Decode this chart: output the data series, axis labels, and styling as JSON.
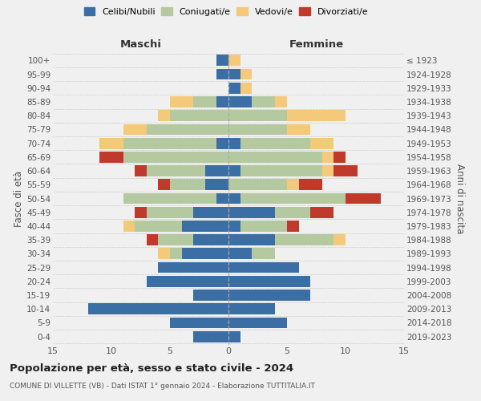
{
  "age_groups": [
    "0-4",
    "5-9",
    "10-14",
    "15-19",
    "20-24",
    "25-29",
    "30-34",
    "35-39",
    "40-44",
    "45-49",
    "50-54",
    "55-59",
    "60-64",
    "65-69",
    "70-74",
    "75-79",
    "80-84",
    "85-89",
    "90-94",
    "95-99",
    "100+"
  ],
  "birth_years": [
    "2019-2023",
    "2014-2018",
    "2009-2013",
    "2004-2008",
    "1999-2003",
    "1994-1998",
    "1989-1993",
    "1984-1988",
    "1979-1983",
    "1974-1978",
    "1969-1973",
    "1964-1968",
    "1959-1963",
    "1954-1958",
    "1949-1953",
    "1944-1948",
    "1939-1943",
    "1934-1938",
    "1929-1933",
    "1924-1928",
    "≤ 1923"
  ],
  "maschi": {
    "celibi": [
      3,
      5,
      12,
      3,
      7,
      6,
      4,
      3,
      4,
      3,
      1,
      2,
      2,
      0,
      1,
      0,
      0,
      1,
      0,
      1,
      1
    ],
    "coniugati": [
      0,
      0,
      0,
      0,
      0,
      0,
      1,
      3,
      4,
      4,
      8,
      3,
      5,
      9,
      8,
      7,
      5,
      2,
      0,
      0,
      0
    ],
    "vedovi": [
      0,
      0,
      0,
      0,
      0,
      0,
      1,
      0,
      1,
      0,
      0,
      0,
      0,
      0,
      2,
      2,
      1,
      2,
      0,
      0,
      0
    ],
    "divorziati": [
      0,
      0,
      0,
      0,
      0,
      0,
      0,
      1,
      0,
      1,
      0,
      1,
      1,
      2,
      0,
      0,
      0,
      0,
      0,
      0,
      0
    ]
  },
  "femmine": {
    "nubili": [
      1,
      5,
      4,
      7,
      7,
      6,
      2,
      4,
      1,
      4,
      1,
      0,
      1,
      0,
      1,
      0,
      0,
      2,
      1,
      1,
      0
    ],
    "coniugate": [
      0,
      0,
      0,
      0,
      0,
      0,
      2,
      5,
      4,
      3,
      9,
      5,
      7,
      8,
      6,
      5,
      5,
      2,
      0,
      0,
      0
    ],
    "vedove": [
      0,
      0,
      0,
      0,
      0,
      0,
      0,
      1,
      0,
      0,
      0,
      1,
      1,
      1,
      2,
      2,
      5,
      1,
      1,
      1,
      1
    ],
    "divorziate": [
      0,
      0,
      0,
      0,
      0,
      0,
      0,
      0,
      1,
      2,
      3,
      2,
      2,
      1,
      0,
      0,
      0,
      0,
      0,
      0,
      0
    ]
  },
  "colors": {
    "celibi": "#3a6ea5",
    "coniugati": "#b5c9a0",
    "vedovi": "#f5c97a",
    "divorziati": "#c0392b"
  },
  "xlim": 15,
  "title": "Popolazione per età, sesso e stato civile - 2024",
  "subtitle": "COMUNE DI VILLETTE (VB) - Dati ISTAT 1° gennaio 2024 - Elaborazione TUTTITALIA.IT",
  "ylabel_left": "Fasce di età",
  "ylabel_right": "Anni di nascita",
  "label_maschi": "Maschi",
  "label_femmine": "Femmine",
  "bg_color": "#f0f0f0",
  "grid_color": "#cccccc",
  "legend_labels": [
    "Celibi/Nubili",
    "Coniugati/e",
    "Vedovi/e",
    "Divorziati/e"
  ]
}
